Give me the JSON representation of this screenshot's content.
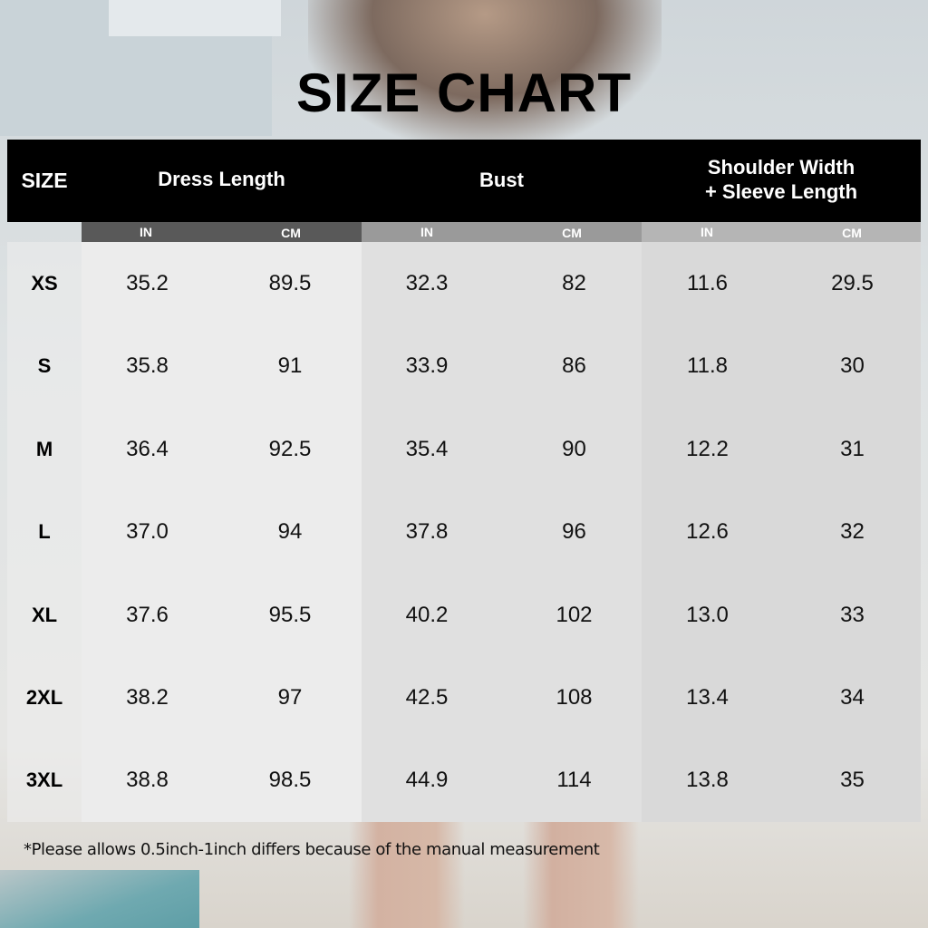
{
  "title": "SIZE CHART",
  "headers": {
    "size": "SIZE",
    "dress_length": "Dress Length",
    "bust": "Bust",
    "shoulder_line1": "Shoulder Width",
    "shoulder_line2": "+ Sleeve Length"
  },
  "units": {
    "in": "IN",
    "cm": "CM"
  },
  "colors": {
    "header_bg": "#000000",
    "dress_sub": "#595959",
    "bust_sub": "#9a9a9a",
    "shoulder_sub": "#b5b5b5",
    "dress_body": "#ececec",
    "bust_body": "#e0e0e0",
    "shoulder_body": "#d9d9d9"
  },
  "rows": [
    {
      "size": "XS",
      "dress_in": "35.2",
      "dress_cm": "89.5",
      "bust_in": "32.3",
      "bust_cm": "82",
      "shoulder_in": "11.6",
      "shoulder_cm": "29.5"
    },
    {
      "size": "S",
      "dress_in": "35.8",
      "dress_cm": "91",
      "bust_in": "33.9",
      "bust_cm": "86",
      "shoulder_in": "11.8",
      "shoulder_cm": "30"
    },
    {
      "size": "M",
      "dress_in": "36.4",
      "dress_cm": "92.5",
      "bust_in": "35.4",
      "bust_cm": "90",
      "shoulder_in": "12.2",
      "shoulder_cm": "31"
    },
    {
      "size": "L",
      "dress_in": "37.0",
      "dress_cm": "94",
      "bust_in": "37.8",
      "bust_cm": "96",
      "shoulder_in": "12.6",
      "shoulder_cm": "32"
    },
    {
      "size": "XL",
      "dress_in": "37.6",
      "dress_cm": "95.5",
      "bust_in": "40.2",
      "bust_cm": "102",
      "shoulder_in": "13.0",
      "shoulder_cm": "33"
    },
    {
      "size": "2XL",
      "dress_in": "38.2",
      "dress_cm": "97",
      "bust_in": "42.5",
      "bust_cm": "108",
      "shoulder_in": "13.4",
      "shoulder_cm": "34"
    },
    {
      "size": "3XL",
      "dress_in": "38.8",
      "dress_cm": "98.5",
      "bust_in": "44.9",
      "bust_cm": "114",
      "shoulder_in": "13.8",
      "shoulder_cm": "35"
    }
  ],
  "note": "*Please allows 0.5inch-1inch differs because of the manual measurement"
}
